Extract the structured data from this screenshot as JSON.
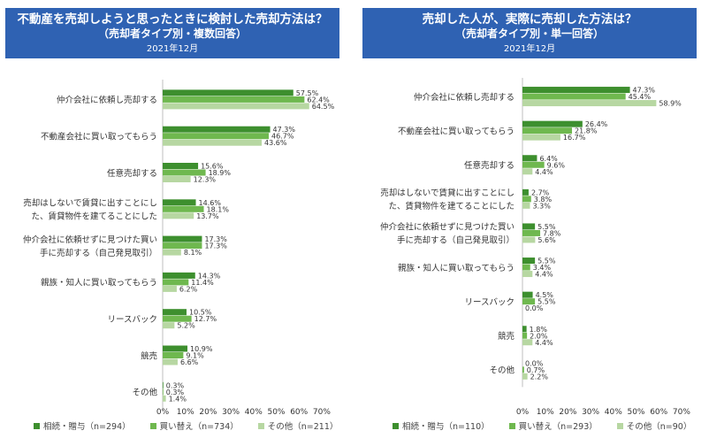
{
  "colors": {
    "header": "#2f62b3",
    "series": [
      "#3d8f2e",
      "#6fb84f",
      "#b7d7a2"
    ]
  },
  "panels": [
    {
      "title": "不動産を売却しようと思ったときに検討した売却方法は？",
      "subtitle": "（売却者タイプ別・複数回答）",
      "date": "2021年12月"
    },
    {
      "title": "売却した人が、実際に売却した方法は？",
      "subtitle": "（売却者タイプ別・単一回答）",
      "date": "2021年12月"
    }
  ],
  "chart_data": [
    {
      "type": "bar",
      "orientation": "horizontal",
      "categories": [
        [
          "仲介会社に依頼し売却する"
        ],
        [
          "不動産会社に買い取ってもらう"
        ],
        [
          "任意売却する"
        ],
        [
          "売却はしないで賃貸に出すことにし",
          "た、賃貸物件を建てることにした"
        ],
        [
          "仲介会社に依頼せずに見つけた買い",
          "手に売却する（自己発見取引）"
        ],
        [
          "親族・知人に買い取ってもらう"
        ],
        [
          "リースバック"
        ],
        [
          "競売"
        ],
        [
          "その他"
        ]
      ],
      "series": [
        {
          "name": "相続・贈与（n=294）",
          "values": [
            57.5,
            47.3,
            15.6,
            14.6,
            17.3,
            14.3,
            10.5,
            10.9,
            0.3
          ]
        },
        {
          "name": "買い替え（n=734）",
          "values": [
            62.4,
            46.7,
            18.9,
            18.1,
            17.3,
            11.4,
            12.7,
            9.1,
            0.3
          ]
        },
        {
          "name": "その他（n=211）",
          "values": [
            64.5,
            43.6,
            12.3,
            13.7,
            8.1,
            6.2,
            5.2,
            6.6,
            1.4
          ]
        }
      ],
      "xlim": [
        0,
        70
      ],
      "xticks": [
        "0%",
        "10%",
        "20%",
        "30%",
        "40%",
        "50%",
        "60%",
        "70%"
      ],
      "value_suffix": "%"
    },
    {
      "type": "bar",
      "orientation": "horizontal",
      "categories": [
        [
          "仲介会社に依頼し売却する"
        ],
        [
          "不動産会社に買い取ってもらう"
        ],
        [
          "任意売却する"
        ],
        [
          "売却はしないで賃貸に出すことにし",
          "た、賃貸物件を建てることにした"
        ],
        [
          "仲介会社に依頼せずに見つけた買い",
          "手に売却する（自己発見取引）"
        ],
        [
          "親族・知人に買い取ってもらう"
        ],
        [
          "リースバック"
        ],
        [
          "競売"
        ],
        [
          "その他"
        ]
      ],
      "series": [
        {
          "name": "相続・贈与（n=110）",
          "values": [
            47.3,
            26.4,
            6.4,
            2.7,
            5.5,
            5.5,
            4.5,
            1.8,
            0.0
          ]
        },
        {
          "name": "買い替え（n=293）",
          "values": [
            45.4,
            21.8,
            9.6,
            3.8,
            7.8,
            3.4,
            5.5,
            2.0,
            0.7
          ]
        },
        {
          "name": "その他（n=90）",
          "values": [
            58.9,
            16.7,
            4.4,
            3.3,
            5.6,
            4.4,
            0.0,
            4.4,
            2.2
          ]
        }
      ],
      "xlim": [
        0,
        70
      ],
      "xticks": [
        "0%",
        "10%",
        "20%",
        "30%",
        "40%",
        "50%",
        "60%",
        "70%"
      ],
      "value_suffix": "%"
    }
  ]
}
